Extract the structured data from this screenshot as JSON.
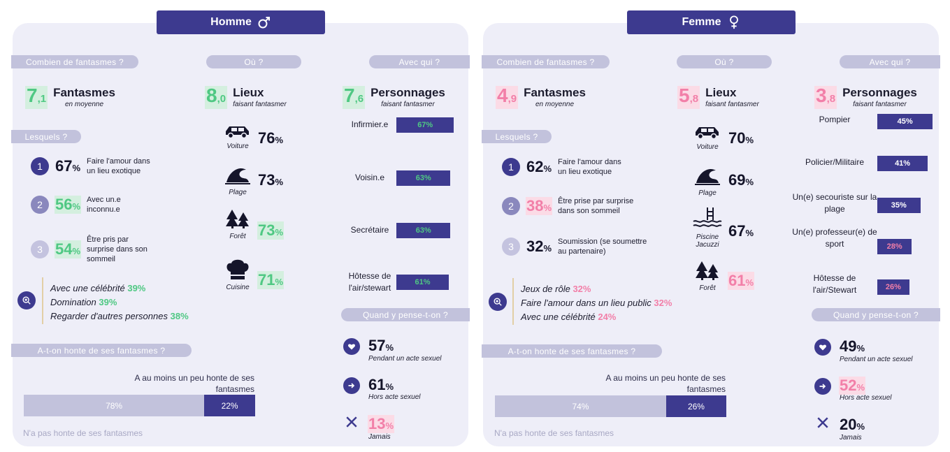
{
  "chart_data": [
    {
      "type": "infographic",
      "panel": "homme",
      "title": "Homme",
      "fantasmes_moyenne": {
        "value": 7.1,
        "int": "7",
        "dec": ",1",
        "label": "Fantasmes",
        "sub": "en moyenne"
      },
      "lieux_moyenne": {
        "value": 8.0,
        "int": "8",
        "dec": ",0",
        "label": "Lieux",
        "sub": "faisant fantasmer"
      },
      "personnages_moyenne": {
        "value": 7.6,
        "int": "7",
        "dec": ",6",
        "label": "Personnages",
        "sub": "faisant fantasmer"
      },
      "top3": [
        {
          "rank": "1",
          "value": 67,
          "text": "Faire l'amour dans un lieu exotique"
        },
        {
          "rank": "2",
          "value": 56,
          "text": "Avec un.e inconnu.e"
        },
        {
          "rank": "3",
          "value": 54,
          "text": "Être pris par surprise dans son sommeil"
        }
      ],
      "others": [
        {
          "label": "Avec une célébrité",
          "value": "39%"
        },
        {
          "label": "Domination",
          "value": "39%"
        },
        {
          "label": "Regarder d'autres personnes",
          "value": "38%"
        }
      ],
      "places": [
        {
          "label": "Voiture",
          "value": 76,
          "icon": "car-icon"
        },
        {
          "label": "Plage",
          "value": 73,
          "icon": "wave-icon"
        },
        {
          "label": "Forêt",
          "value": 73,
          "icon": "forest-icon"
        },
        {
          "label": "Cuisine",
          "value": 71,
          "icon": "chef-hat-icon"
        }
      ],
      "characters": [
        {
          "label": "Infirmier.e",
          "value": 67
        },
        {
          "label": "Voisin.e",
          "value": 63
        },
        {
          "label": "Secrétaire",
          "value": 63
        },
        {
          "label": "Hôtesse de l'air/stewart",
          "value": 61
        }
      ],
      "when": [
        {
          "label": "Pendant un acte sexuel",
          "value": 57,
          "icon": "heart-icon"
        },
        {
          "label": "Hors acte sexuel",
          "value": 61,
          "icon": "arrow-icon"
        },
        {
          "label": "Jamais",
          "value": 13,
          "icon": "cross-icon"
        }
      ],
      "shame": {
        "no_shame": 78,
        "some_shame": 22,
        "some_shame_label": "A au moins un peu honte de ses fantasmes",
        "no_shame_label": "N'a pas honte de ses fantasmes"
      }
    },
    {
      "type": "infographic",
      "panel": "femme",
      "title": "Femme",
      "fantasmes_moyenne": {
        "value": 4.9,
        "int": "4",
        "dec": ",9",
        "label": "Fantasmes",
        "sub": "en moyenne"
      },
      "lieux_moyenne": {
        "value": 5.8,
        "int": "5",
        "dec": ",8",
        "label": "Lieux",
        "sub": "faisant fantasmer"
      },
      "personnages_moyenne": {
        "value": 3.8,
        "int": "3",
        "dec": ",8",
        "label": "Personnages",
        "sub": "faisant fantasmer"
      },
      "top3": [
        {
          "rank": "1",
          "value": 62,
          "text": "Faire l'amour dans un lieu exotique"
        },
        {
          "rank": "2",
          "value": 38,
          "text": "Être prise par surprise dans son sommeil"
        },
        {
          "rank": "3",
          "value": 32,
          "text": "Soumission (se soumettre au partenaire)"
        }
      ],
      "others": [
        {
          "label": "Jeux de rôle",
          "value": "32%"
        },
        {
          "label": "Faire l'amour dans un lieu public",
          "value": "32%"
        },
        {
          "label": "Avec une célébrité",
          "value": "24%"
        }
      ],
      "places": [
        {
          "label": "Voiture",
          "value": 70,
          "icon": "car-icon"
        },
        {
          "label": "Plage",
          "value": 69,
          "icon": "wave-icon"
        },
        {
          "label": "Piscine Jacuzzi",
          "value": 67,
          "icon": "pool-icon"
        },
        {
          "label": "Forêt",
          "value": 61,
          "icon": "forest-icon"
        }
      ],
      "characters": [
        {
          "label": "Pompier",
          "value": 45
        },
        {
          "label": "Policier/Militaire",
          "value": 41
        },
        {
          "label": "Un(e) secouriste sur la plage",
          "value": 35
        },
        {
          "label": "Un(e) professeur(e) de sport",
          "value": 28
        },
        {
          "label": "Hôtesse de l'air/Stewart",
          "value": 26
        }
      ],
      "when": [
        {
          "label": "Pendant un acte sexuel",
          "value": 49,
          "icon": "heart-icon"
        },
        {
          "label": "Hors acte sexuel",
          "value": 52,
          "icon": "arrow-icon"
        },
        {
          "label": "Jamais",
          "value": 20,
          "icon": "cross-icon"
        }
      ],
      "shame": {
        "no_shame": 74,
        "some_shame": 26,
        "some_shame_label": "A au moins un peu honte de ses fantasmes",
        "no_shame_label": "N'a pas honte de ses fantasmes"
      }
    }
  ],
  "sections": {
    "combien": "Combien de fantasmes ?",
    "ou": "Où ?",
    "avec_qui": "Avec qui ?",
    "lesquels": "Lesquels ?",
    "quand": "Quand y pense-t-on ?",
    "honte": "A-t-on honte de ses fantasmes ?"
  },
  "colors": {
    "navy": "#3d3a8f",
    "green": "#4fc883",
    "pink": "#f27fa8",
    "panel": "#eeeef8",
    "pill": "#c2c2dc",
    "light_bar": "#c2c2dc"
  }
}
